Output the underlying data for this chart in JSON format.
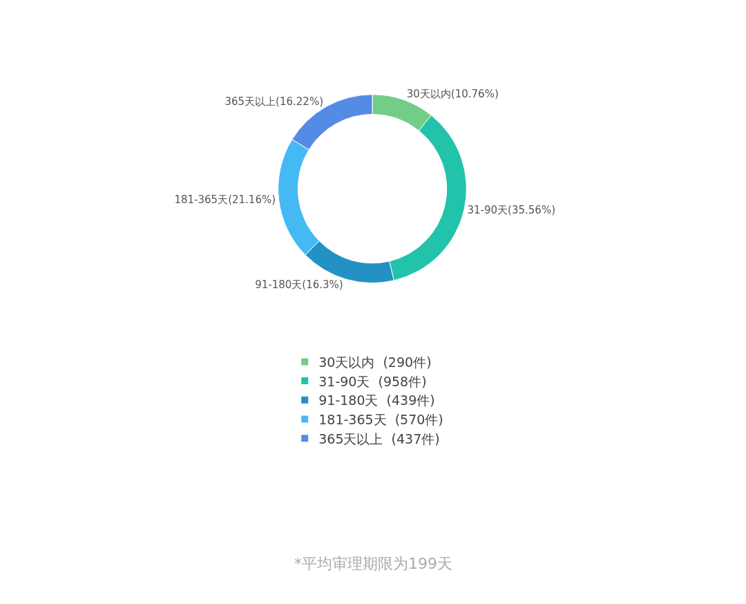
{
  "chart_data": {
    "type": "donut",
    "categories": [
      "30天以内  (290件)",
      "31-90天  (958件)",
      "91-180天  (439件)",
      "181-365天  (570件)",
      "365天以上  (437件)"
    ],
    "values": [
      10.76,
      35.56,
      16.3,
      21.16,
      16.22
    ],
    "value_labels": [
      "30天以内(10.76%)",
      "31-90天(35.56%)",
      "91-180天(16.3%)",
      "181-365天(21.16%)",
      "365天以上(16.22%)"
    ],
    "colors": [
      "#73cd87",
      "#22c3aa",
      "#2391c4",
      "#44b9f4",
      "#548ce5"
    ],
    "legend": "bottom",
    "annotations": [
      "*平均审理期限为199天"
    ]
  }
}
